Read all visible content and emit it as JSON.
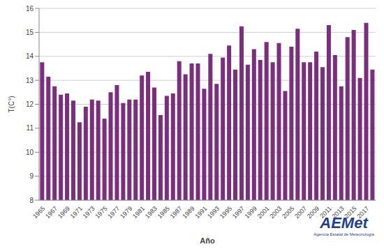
{
  "chart_data": {
    "type": "bar",
    "x_label": "Año",
    "y_label": "T(C°)",
    "categories": [
      "1965",
      null,
      "1967",
      null,
      "1969",
      null,
      "1971",
      null,
      "1973",
      null,
      "1975",
      null,
      "1977",
      null,
      "1979",
      null,
      "1981",
      null,
      "1983",
      null,
      "1985",
      null,
      "1987",
      null,
      "1989",
      null,
      "1991",
      null,
      "1993",
      null,
      "1995",
      null,
      "1997",
      null,
      "1999",
      null,
      "2001",
      null,
      "2003",
      null,
      "2005",
      null,
      "2007",
      null,
      "2009",
      null,
      "2011",
      null,
      "2013",
      null,
      "2015",
      null,
      "2017",
      null
    ],
    "values": [
      13.75,
      13.15,
      12.75,
      12.4,
      12.45,
      12.15,
      11.25,
      11.9,
      12.2,
      12.15,
      11.4,
      12.5,
      12.8,
      12.05,
      12.2,
      12.2,
      13.2,
      13.35,
      12.7,
      11.55,
      12.35,
      12.45,
      13.8,
      13.25,
      13.7,
      13.7,
      12.65,
      14.1,
      12.85,
      13.95,
      14.45,
      13.45,
      15.25,
      13.65,
      14.3,
      13.85,
      14.6,
      13.75,
      14.55,
      12.55,
      14.4,
      15.15,
      13.75,
      13.75,
      14.2,
      13.55,
      15.3,
      14.05,
      12.75,
      14.8,
      15.1,
      13.1,
      15.4,
      13.45
    ],
    "color": "#7b2d7e",
    "ylim": [
      8,
      16
    ],
    "yticks": [
      8,
      9,
      10,
      11,
      12,
      13,
      14,
      15,
      16
    ],
    "grid": true,
    "annotations": [
      "AEMet",
      "Agencia Estatal de Meteorología"
    ]
  }
}
